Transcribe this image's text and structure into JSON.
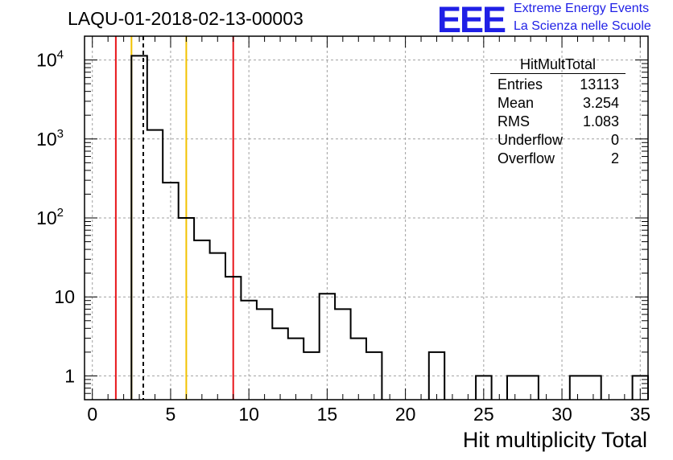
{
  "chart_data": {
    "type": "histogram",
    "title": "LAQU-01-2018-02-13-00003",
    "xlabel": "Hit multiplicity Total",
    "ylabel": "",
    "xlim": [
      -0.5,
      35.5
    ],
    "ylim_log": [
      0.5,
      20000
    ],
    "yscale": "log",
    "grid": true,
    "bin_width": 1,
    "x_ticks": [
      0,
      5,
      10,
      15,
      20,
      25,
      30,
      35
    ],
    "y_ticks": [
      {
        "value": 1,
        "label": "1"
      },
      {
        "value": 10,
        "label": "10"
      },
      {
        "value": 100,
        "label": "10",
        "exp": "2"
      },
      {
        "value": 1000,
        "label": "10",
        "exp": "3"
      },
      {
        "value": 10000,
        "label": "10",
        "exp": "4"
      }
    ],
    "bins": [
      {
        "x": 3,
        "count": 11300
      },
      {
        "x": 4,
        "count": 1300
      },
      {
        "x": 5,
        "count": 280
      },
      {
        "x": 6,
        "count": 100
      },
      {
        "x": 7,
        "count": 52
      },
      {
        "x": 8,
        "count": 36
      },
      {
        "x": 9,
        "count": 18
      },
      {
        "x": 10,
        "count": 9
      },
      {
        "x": 11,
        "count": 7
      },
      {
        "x": 12,
        "count": 4
      },
      {
        "x": 13,
        "count": 3
      },
      {
        "x": 14,
        "count": 2
      },
      {
        "x": 15,
        "count": 11
      },
      {
        "x": 16,
        "count": 7
      },
      {
        "x": 17,
        "count": 3
      },
      {
        "x": 18,
        "count": 2
      },
      {
        "x": 22,
        "count": 2
      },
      {
        "x": 25,
        "count": 1
      },
      {
        "x": 27,
        "count": 1
      },
      {
        "x": 28,
        "count": 1
      },
      {
        "x": 31,
        "count": 1
      },
      {
        "x": 32,
        "count": 1
      },
      {
        "x": 35,
        "count": 1
      }
    ],
    "markers": [
      {
        "x": 1.5,
        "color": "#e8161b",
        "style": "solid"
      },
      {
        "x": 2.5,
        "color": "#f2c200",
        "style": "solid"
      },
      {
        "x": 3.254,
        "color": "#000000",
        "style": "dashed"
      },
      {
        "x": 6.0,
        "color": "#f2c200",
        "style": "solid"
      },
      {
        "x": 9.0,
        "color": "#e8161b",
        "style": "solid"
      }
    ],
    "stats": {
      "name": "HitMultTotal",
      "rows": [
        {
          "label": "Entries",
          "value": "13113"
        },
        {
          "label": "Mean",
          "value": "3.254"
        },
        {
          "label": "RMS",
          "value": "1.083"
        },
        {
          "label": "Underflow",
          "value": "0"
        },
        {
          "label": "Overflow",
          "value": "2"
        }
      ]
    }
  },
  "branding": {
    "logo_text": "EEE",
    "line1": "Extreme Energy Events",
    "line2": "La Scienza nelle Scuole",
    "color": "#1f1fe6"
  }
}
